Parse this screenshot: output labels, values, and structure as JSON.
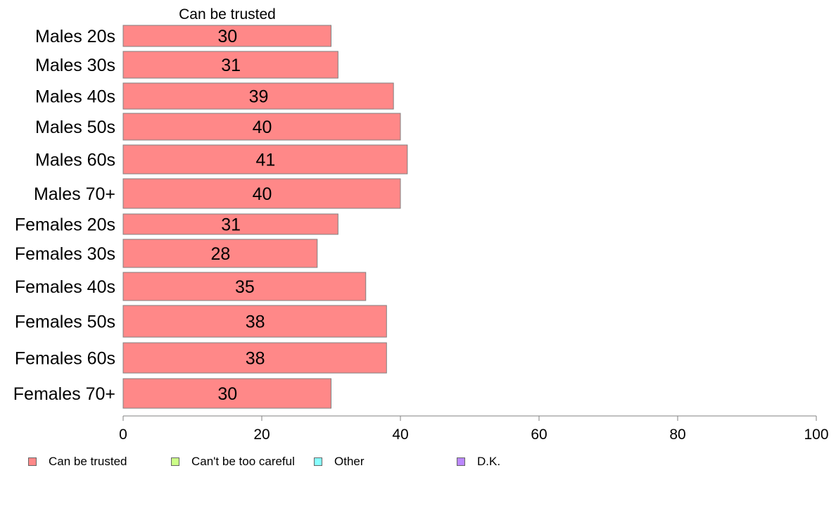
{
  "chart_data": {
    "type": "bar",
    "orientation": "horizontal",
    "stacked": true,
    "top_label": "Can be trusted",
    "categories": [
      "Males 20s",
      "Males 30s",
      "Males 40s",
      "Males 50s",
      "Males 60s",
      "Males 70+",
      "Females 20s",
      "Females 30s",
      "Females 40s",
      "Females 50s",
      "Females 60s",
      "Females 70+"
    ],
    "series": [
      {
        "name": "Can be trusted",
        "color": "#ff8888",
        "values": [
          30,
          31,
          39,
          40,
          41,
          40,
          31,
          28,
          35,
          38,
          38,
          30
        ]
      }
    ],
    "xlim": [
      0,
      100
    ],
    "xticks": [
      0,
      20,
      40,
      60,
      80,
      100
    ],
    "grid": false,
    "legend_position": "bottom",
    "legend": [
      {
        "name": "Can be trusted",
        "color": "#ff8888"
      },
      {
        "name": "Can't be too careful",
        "color": "#ccff88"
      },
      {
        "name": "Other",
        "color": "#88ffff"
      },
      {
        "name": "D.K.",
        "color": "#bb88ff"
      }
    ]
  }
}
